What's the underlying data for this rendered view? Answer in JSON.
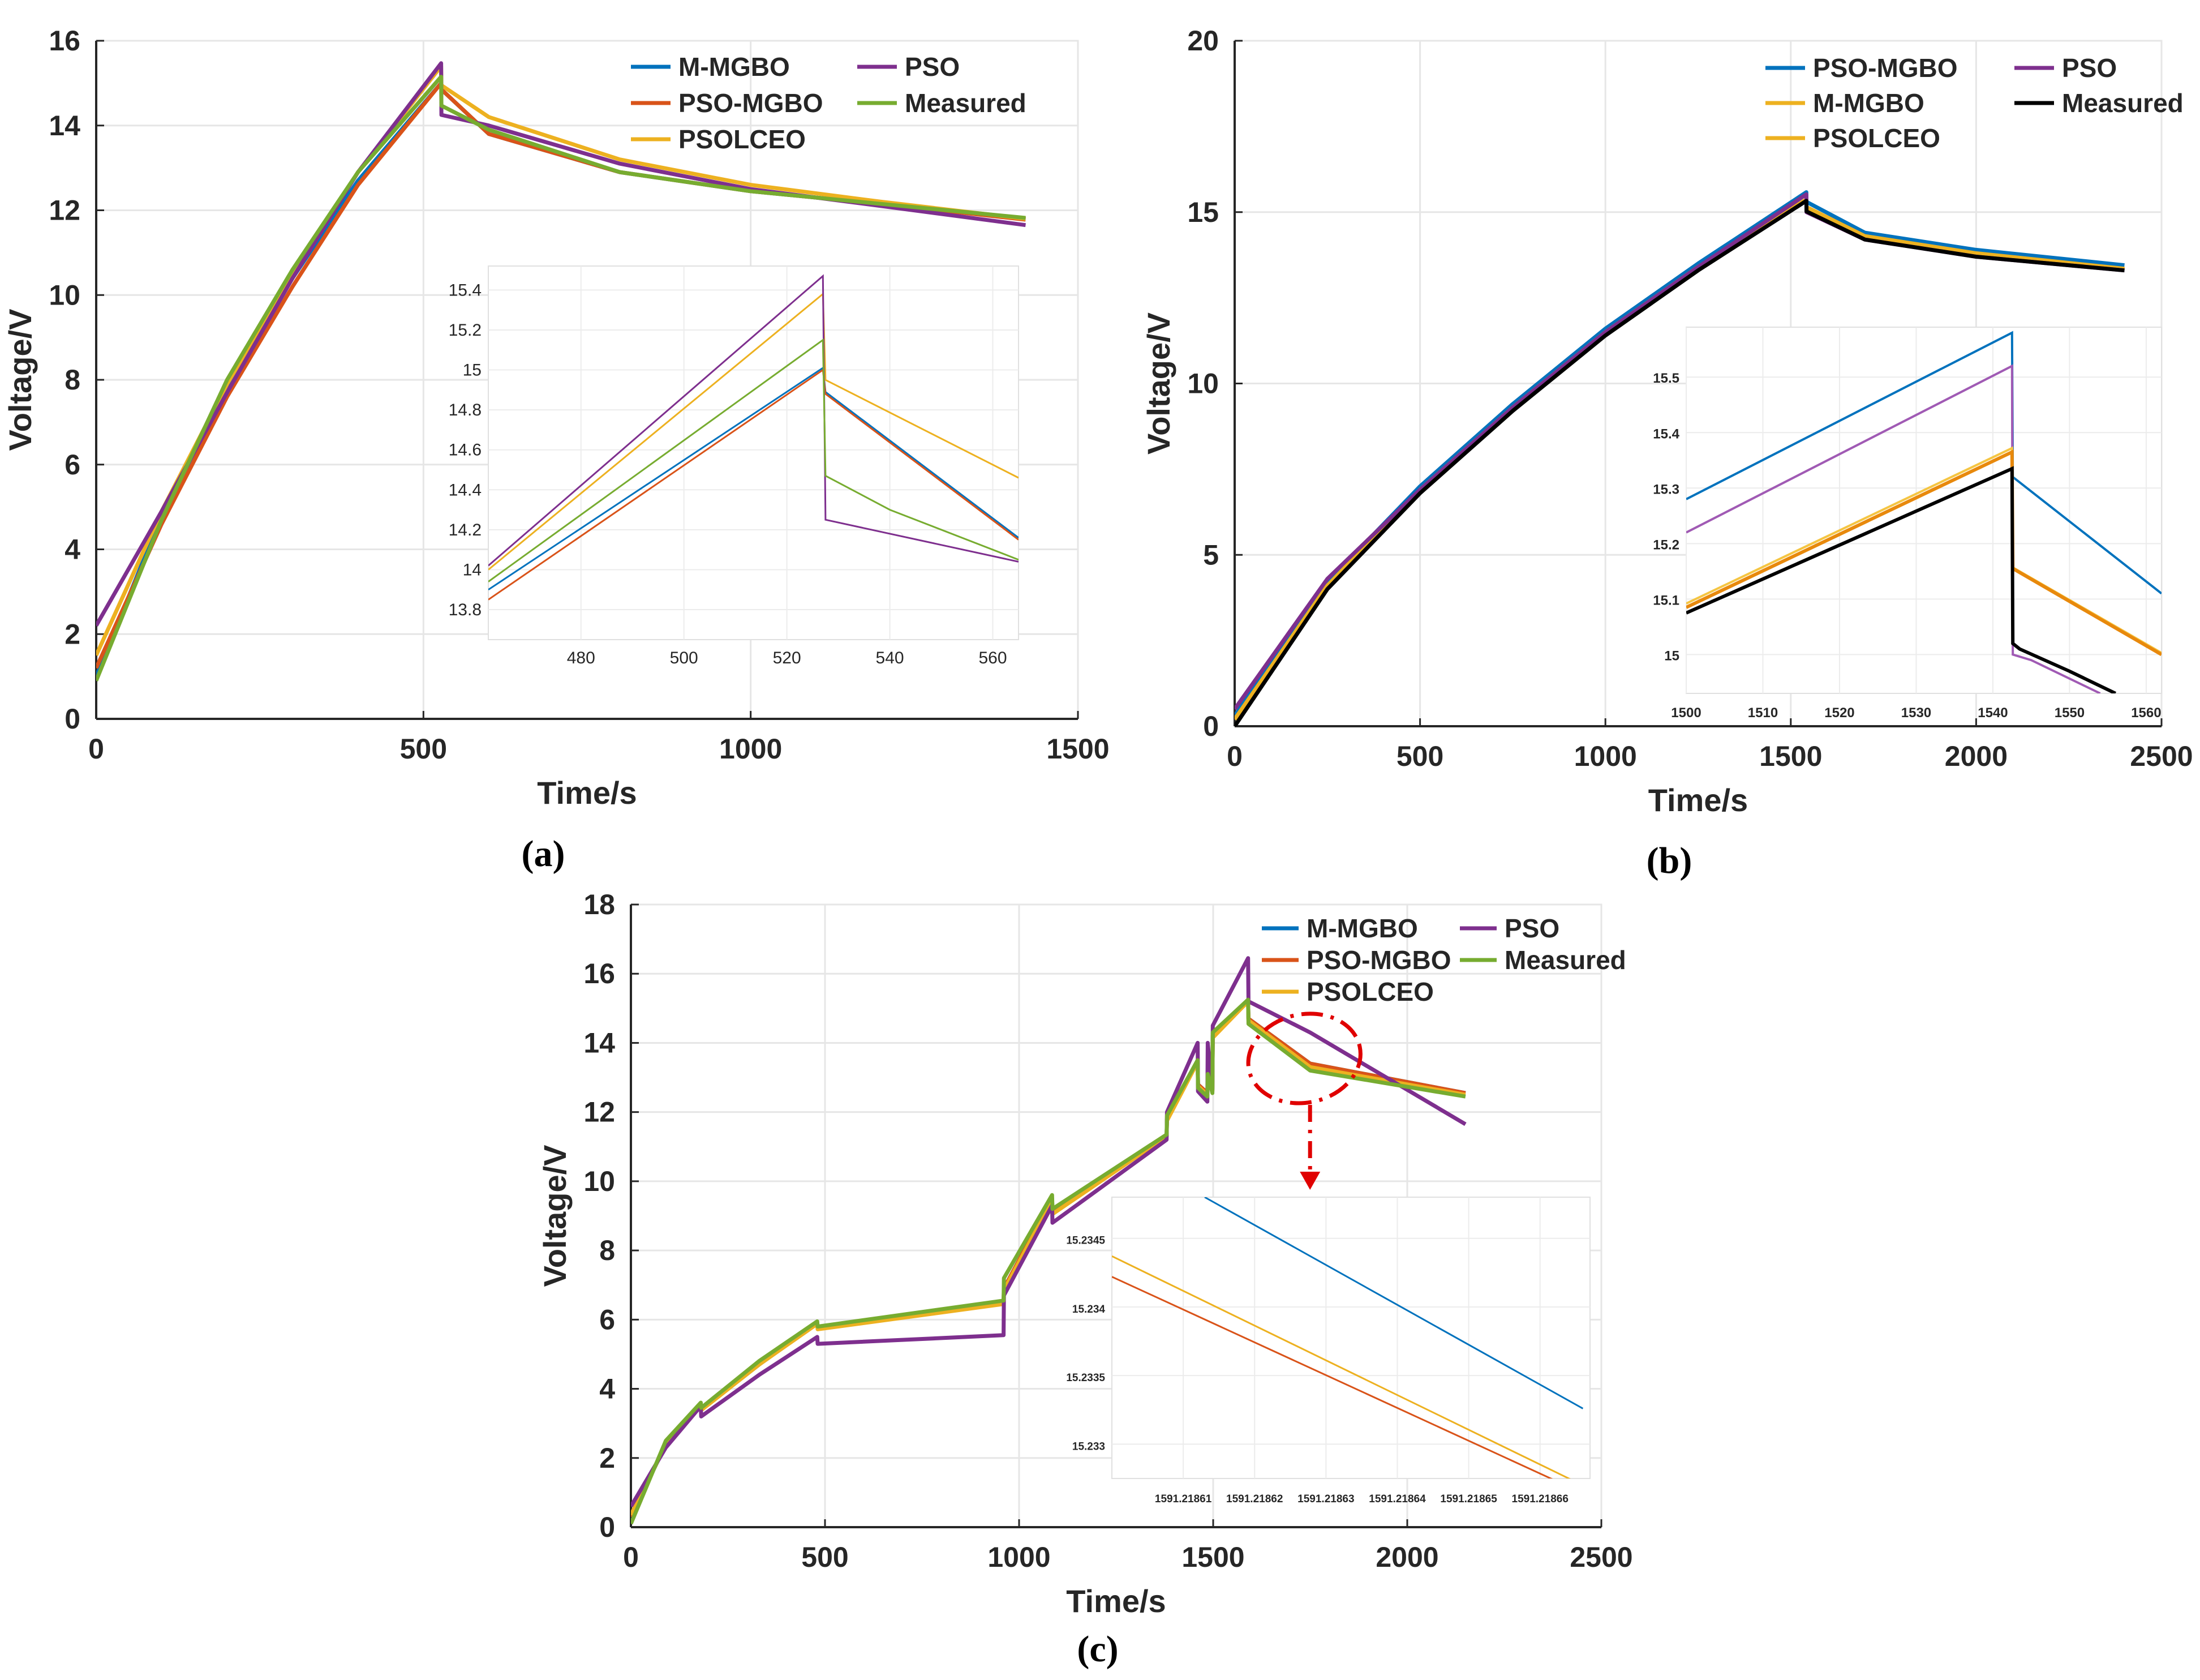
{
  "chart_data": [
    {
      "id": "a",
      "type": "line",
      "panel_label": "(a)",
      "xlabel": "Time/s",
      "ylabel": "Voltage/V",
      "xlim": [
        0,
        1500
      ],
      "ylim": [
        0,
        16
      ],
      "xticks": [
        0,
        500,
        1000,
        1500
      ],
      "yticks": [
        0,
        2,
        4,
        6,
        8,
        10,
        12,
        14,
        16
      ],
      "grid": true,
      "legend": {
        "position": "top-right",
        "order": [
          "M-MGBO",
          "PSO",
          "PSO-MGBO",
          "Measured",
          "PSOLCEO"
        ]
      },
      "series": [
        {
          "name": "M-MGBO",
          "color": "#0072BD",
          "x": [
            0,
            100,
            200,
            300,
            400,
            527,
            527.5,
            600,
            800,
            1000,
            1200,
            1420
          ],
          "y": [
            1.0,
            4.8,
            7.8,
            10.4,
            12.7,
            15.0,
            14.85,
            13.8,
            12.9,
            12.45,
            12.15,
            11.8
          ]
        },
        {
          "name": "PSO-MGBO",
          "color": "#D95319",
          "x": [
            0,
            100,
            200,
            300,
            400,
            527,
            527.5,
            600,
            800,
            1000,
            1200,
            1420
          ],
          "y": [
            1.2,
            4.6,
            7.6,
            10.2,
            12.6,
            15.0,
            14.85,
            13.8,
            12.9,
            12.45,
            12.15,
            11.78
          ]
        },
        {
          "name": "PSOLCEO",
          "color": "#EDB120",
          "x": [
            0,
            100,
            200,
            300,
            400,
            527,
            527.5,
            600,
            800,
            1000,
            1200,
            1420
          ],
          "y": [
            1.5,
            4.9,
            7.9,
            10.5,
            12.9,
            15.4,
            14.95,
            14.2,
            13.2,
            12.6,
            12.2,
            11.8
          ]
        },
        {
          "name": "PSO",
          "color": "#7E2F8E",
          "x": [
            0,
            100,
            200,
            300,
            400,
            527,
            527.5,
            600,
            800,
            1000,
            1200,
            1420
          ],
          "y": [
            2.2,
            4.9,
            7.7,
            10.4,
            12.9,
            15.47,
            14.25,
            14.0,
            13.1,
            12.5,
            12.1,
            11.65
          ]
        },
        {
          "name": "Measured",
          "color": "#77AC30",
          "x": [
            0,
            100,
            200,
            300,
            400,
            527,
            527.5,
            600,
            800,
            1000,
            1200,
            1420
          ],
          "y": [
            0.9,
            4.7,
            8.0,
            10.6,
            12.9,
            15.15,
            14.47,
            13.9,
            12.9,
            12.45,
            12.15,
            11.82
          ]
        }
      ],
      "inset": {
        "xlim": [
          462,
          565
        ],
        "ylim": [
          13.65,
          15.52
        ],
        "xticks": [
          480,
          500,
          520,
          540,
          560
        ],
        "yticks": [
          13.8,
          14,
          14.2,
          14.4,
          14.6,
          14.8,
          15,
          15.2,
          15.4
        ],
        "ytick_labels": [
          "13.8",
          "14",
          "14.2",
          "14.4",
          "14.6",
          "14.8",
          "15",
          "15.2",
          "15.4"
        ],
        "series": [
          {
            "name": "M-MGBO",
            "color": "#0072BD",
            "x": [
              462,
              527,
              527.5,
              565
            ],
            "y": [
              13.9,
              15.01,
              14.89,
              14.16
            ]
          },
          {
            "name": "PSO-MGBO",
            "color": "#D95319",
            "x": [
              462,
              527,
              527.5,
              565
            ],
            "y": [
              13.85,
              15.0,
              14.88,
              14.15
            ]
          },
          {
            "name": "PSOLCEO",
            "color": "#EDB120",
            "x": [
              462,
              527,
              527.5,
              565
            ],
            "y": [
              14.0,
              15.38,
              14.95,
              14.46
            ]
          },
          {
            "name": "PSO",
            "color": "#7E2F8E",
            "x": [
              462,
              527,
              527.5,
              565
            ],
            "y": [
              14.02,
              15.47,
              14.25,
              14.04
            ]
          },
          {
            "name": "Measured",
            "color": "#77AC30",
            "x": [
              462,
              527,
              527.5,
              540,
              565
            ],
            "y": [
              13.94,
              15.15,
              14.47,
              14.3,
              14.05
            ]
          }
        ]
      }
    },
    {
      "id": "b",
      "type": "line",
      "panel_label": "(b)",
      "xlabel": "Time/s",
      "ylabel": "Voltage/V",
      "xlim": [
        0,
        2500
      ],
      "ylim": [
        0,
        20
      ],
      "xticks": [
        0,
        500,
        1000,
        1500,
        2000,
        2500
      ],
      "yticks": [
        0,
        5,
        10,
        15,
        20
      ],
      "grid": true,
      "legend": {
        "position": "top-right",
        "order": [
          "PSO-MGBO",
          "PSO",
          "M-MGBO",
          "Measured",
          "PSOLCEO"
        ]
      },
      "series": [
        {
          "name": "PSO-MGBO",
          "color": "#0072BD",
          "x": [
            0,
            250,
            500,
            750,
            1000,
            1250,
            1542,
            1542.5,
            1700,
            2000,
            2400
          ],
          "y": [
            0.3,
            4.2,
            7.0,
            9.4,
            11.6,
            13.5,
            15.58,
            15.3,
            14.4,
            13.9,
            13.45
          ]
        },
        {
          "name": "M-MGBO",
          "color": "#EDB120",
          "x": [
            0,
            250,
            500,
            750,
            1000,
            1250,
            1542,
            1542.5,
            1700,
            2000,
            2400
          ],
          "y": [
            0.2,
            4.1,
            6.9,
            9.3,
            11.5,
            13.4,
            15.37,
            15.15,
            14.3,
            13.8,
            13.35
          ]
        },
        {
          "name": "PSOLCEO",
          "color": "#EDB120",
          "x": [
            0,
            250,
            500,
            750,
            1000,
            1250,
            1542,
            1542.5,
            1700,
            2000,
            2400
          ],
          "y": [
            0.2,
            4.1,
            6.9,
            9.3,
            11.5,
            13.4,
            15.35,
            15.12,
            14.28,
            13.78,
            13.33
          ]
        },
        {
          "name": "PSO",
          "color": "#7E2F8E",
          "x": [
            0,
            250,
            500,
            750,
            1000,
            1250,
            1542,
            1542.5,
            1700,
            2000,
            2400
          ],
          "y": [
            0.5,
            4.3,
            6.9,
            9.3,
            11.5,
            13.4,
            15.52,
            15.0,
            14.2,
            13.7,
            13.3
          ]
        },
        {
          "name": "Measured",
          "color": "#000000",
          "x": [
            0,
            250,
            500,
            750,
            1000,
            1250,
            1542,
            1542.5,
            1700,
            2000,
            2400
          ],
          "y": [
            0.0,
            4.0,
            6.8,
            9.2,
            11.4,
            13.3,
            15.33,
            15.02,
            14.2,
            13.7,
            13.3
          ]
        }
      ],
      "inset": {
        "xlim": [
          1500,
          1562
        ],
        "ylim": [
          14.93,
          15.59
        ],
        "xticks": [
          1500,
          1510,
          1520,
          1530,
          1540,
          1550,
          1560
        ],
        "yticks": [
          15,
          15.1,
          15.2,
          15.3,
          15.4,
          15.5
        ],
        "ytick_labels": [
          "15",
          "15.1",
          "15.2",
          "15.3",
          "15.4",
          "15.5"
        ],
        "series": [
          {
            "name": "PSO-MGBO",
            "color": "#0072BD",
            "x": [
              1500,
              1542.5,
              1542.6,
              1562
            ],
            "y": [
              15.28,
              15.58,
              15.32,
              15.11
            ]
          },
          {
            "name": "PSO",
            "color": "#A05AB4",
            "x": [
              1500,
              1542.5,
              1542.6,
              1545,
              1554
            ],
            "y": [
              15.22,
              15.52,
              15.0,
              14.99,
              14.93
            ]
          },
          {
            "name": "PSOLCEO",
            "color": "#F5C542",
            "x": [
              1500,
              1542.5,
              1542.6,
              1562
            ],
            "y": [
              15.092,
              15.372,
              15.157,
              15.003
            ]
          },
          {
            "name": "M-MGBO",
            "color": "#E8890C",
            "x": [
              1500,
              1542.5,
              1542.6,
              1562
            ],
            "y": [
              15.085,
              15.365,
              15.155,
              15.0
            ]
          },
          {
            "name": "Measured",
            "color": "#000000",
            "x": [
              1500,
              1542.5,
              1542.6,
              1543.5,
              1550,
              1556
            ],
            "y": [
              15.075,
              15.335,
              15.02,
              15.01,
              14.97,
              14.93
            ]
          }
        ]
      }
    },
    {
      "id": "c",
      "type": "line",
      "panel_label": "(c)",
      "xlabel": "Time/s",
      "ylabel": "Voltage/V",
      "xlim": [
        0,
        2500
      ],
      "ylim": [
        0,
        18
      ],
      "xticks": [
        0,
        500,
        1000,
        1500,
        2000,
        2500
      ],
      "yticks": [
        0,
        2,
        4,
        6,
        8,
        10,
        12,
        14,
        16,
        18
      ],
      "grid": true,
      "legend": {
        "position": "top-right",
        "order": [
          "M-MGBO",
          "PSO",
          "PSO-MGBO",
          "Measured",
          "PSOLCEO"
        ]
      },
      "annotation": "dashed red ellipse near t = 1750 s, V = 13.3 V with dash-dot arrow pointing down to the inset",
      "series": [
        {
          "name": "M-MGBO",
          "color": "#0072BD",
          "x": [
            0,
            90,
            180,
            181,
            330,
            480,
            481,
            960,
            961,
            1085,
            1086,
            1380,
            1381,
            1460,
            1461,
            1485,
            1486,
            1498,
            1499,
            1590,
            1591,
            1750,
            2150
          ],
          "y": [
            0.3,
            2.4,
            3.55,
            3.4,
            4.7,
            5.9,
            5.75,
            6.5,
            6.9,
            9.5,
            9.1,
            11.3,
            11.8,
            13.5,
            12.8,
            12.55,
            13.0,
            12.65,
            14.2,
            15.23,
            14.7,
            13.4,
            12.55
          ]
        },
        {
          "name": "PSO-MGBO",
          "color": "#D95319",
          "x": [
            0,
            90,
            180,
            181,
            330,
            480,
            481,
            960,
            961,
            1085,
            1086,
            1380,
            1381,
            1460,
            1461,
            1485,
            1486,
            1498,
            1499,
            1590,
            1591,
            1750,
            2150
          ],
          "y": [
            0.3,
            2.4,
            3.55,
            3.4,
            4.7,
            5.9,
            5.75,
            6.5,
            6.9,
            9.5,
            9.1,
            11.3,
            11.8,
            13.5,
            12.8,
            12.55,
            13.0,
            12.65,
            14.2,
            15.23,
            14.7,
            13.4,
            12.55
          ]
        },
        {
          "name": "PSOLCEO",
          "color": "#EDB120",
          "x": [
            0,
            90,
            180,
            181,
            330,
            480,
            481,
            960,
            961,
            1085,
            1086,
            1380,
            1381,
            1460,
            1461,
            1485,
            1486,
            1498,
            1499,
            1590,
            1591,
            1750,
            2150
          ],
          "y": [
            0.35,
            2.4,
            3.5,
            3.38,
            4.7,
            5.88,
            5.72,
            6.45,
            6.85,
            9.45,
            9.05,
            11.3,
            11.75,
            13.45,
            12.75,
            12.5,
            12.95,
            12.6,
            14.15,
            15.2,
            14.65,
            13.3,
            12.5
          ]
        },
        {
          "name": "PSO",
          "color": "#7E2F8E",
          "x": [
            0,
            90,
            180,
            181,
            330,
            480,
            481,
            960,
            961,
            1085,
            1086,
            1380,
            1381,
            1460,
            1461,
            1485,
            1486,
            1498,
            1499,
            1590,
            1591,
            1750,
            2150
          ],
          "y": [
            0.6,
            2.3,
            3.5,
            3.2,
            4.4,
            5.5,
            5.3,
            5.55,
            6.7,
            9.3,
            8.8,
            11.2,
            12.0,
            14.0,
            12.6,
            12.3,
            14.0,
            12.6,
            14.5,
            16.45,
            15.2,
            14.3,
            11.65
          ]
        },
        {
          "name": "Measured",
          "color": "#77AC30",
          "x": [
            0,
            90,
            180,
            181,
            330,
            480,
            481,
            960,
            961,
            1085,
            1086,
            1380,
            1381,
            1460,
            1461,
            1485,
            1486,
            1498,
            1499,
            1590,
            1591,
            1750,
            2150
          ],
          "y": [
            0.1,
            2.5,
            3.6,
            3.45,
            4.8,
            5.95,
            5.8,
            6.55,
            7.2,
            9.6,
            9.2,
            11.35,
            11.9,
            13.5,
            12.7,
            12.45,
            13.1,
            12.55,
            14.3,
            15.25,
            14.55,
            13.2,
            12.45
          ]
        }
      ],
      "inset": {
        "xlim": [
          1591.2186,
          1591.218667
        ],
        "ylim": [
          15.23275,
          15.2348
        ],
        "xticks": [
          1591.21861,
          1591.21862,
          1591.21863,
          1591.21864,
          1591.21865,
          1591.21866
        ],
        "xtick_labels": [
          "1591.21861",
          "1591.21862",
          "1591.21863",
          "1591.21864",
          "1591.21865",
          "1591.21866"
        ],
        "yticks": [
          15.233,
          15.2335,
          15.234,
          15.2345
        ],
        "ytick_labels": [
          "15.233",
          "15.2335",
          "15.234",
          "15.2345"
        ],
        "series": [
          {
            "name": "M-MGBO",
            "color": "#0072BD",
            "x": [
              1591.218613,
              1591.218666
            ],
            "y": [
              15.2348,
              15.23326
            ]
          },
          {
            "name": "PSOLCEO",
            "color": "#EDB120",
            "x": [
              1591.2186,
              1591.218666
            ],
            "y": [
              15.23437,
              15.2327
            ]
          },
          {
            "name": "PSO-MGBO",
            "color": "#D95319",
            "x": [
              1591.2186,
              1591.218664
            ],
            "y": [
              15.23422,
              15.23269
            ]
          }
        ]
      }
    }
  ]
}
